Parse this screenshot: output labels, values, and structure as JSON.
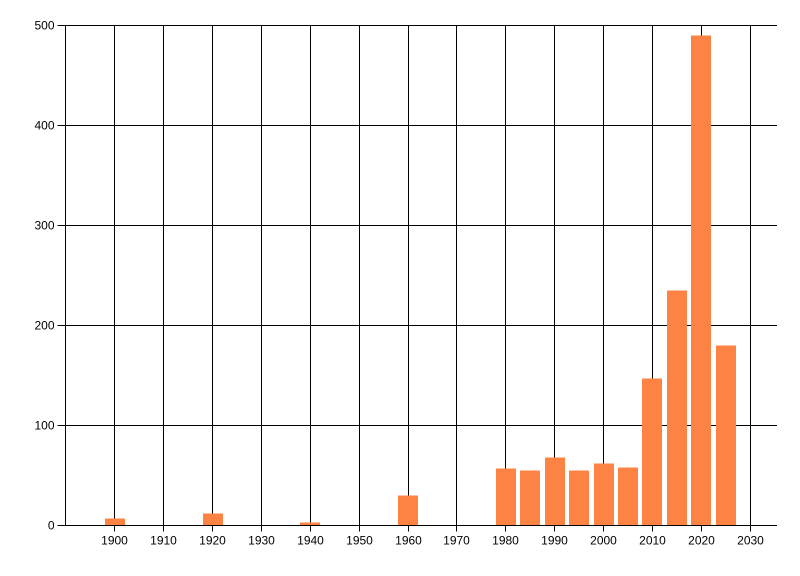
{
  "chart_data": {
    "type": "bar",
    "x": [
      1900,
      1920,
      1940,
      1960,
      1980,
      1985,
      1990,
      1995,
      2000,
      2005,
      2010,
      2015,
      2020,
      2025
    ],
    "values": [
      7,
      12,
      3,
      30,
      57,
      55,
      68,
      55,
      62,
      58,
      147,
      235,
      490,
      180
    ],
    "x_ticks": [
      1900,
      1910,
      1920,
      1930,
      1940,
      1950,
      1960,
      1970,
      1980,
      1990,
      2000,
      2010,
      2020,
      2030
    ],
    "y_ticks": [
      0,
      100,
      200,
      300,
      400,
      500
    ],
    "xlim": [
      1890,
      2035.5
    ],
    "ylim": [
      0,
      500
    ],
    "title": "",
    "xlabel": "",
    "ylabel": "",
    "grid": true,
    "legend": false,
    "colors": {
      "bar": "#FC8344",
      "grid": "#000000",
      "axis": "#000000",
      "label": "#000000",
      "background": "#FFFFFF"
    }
  }
}
